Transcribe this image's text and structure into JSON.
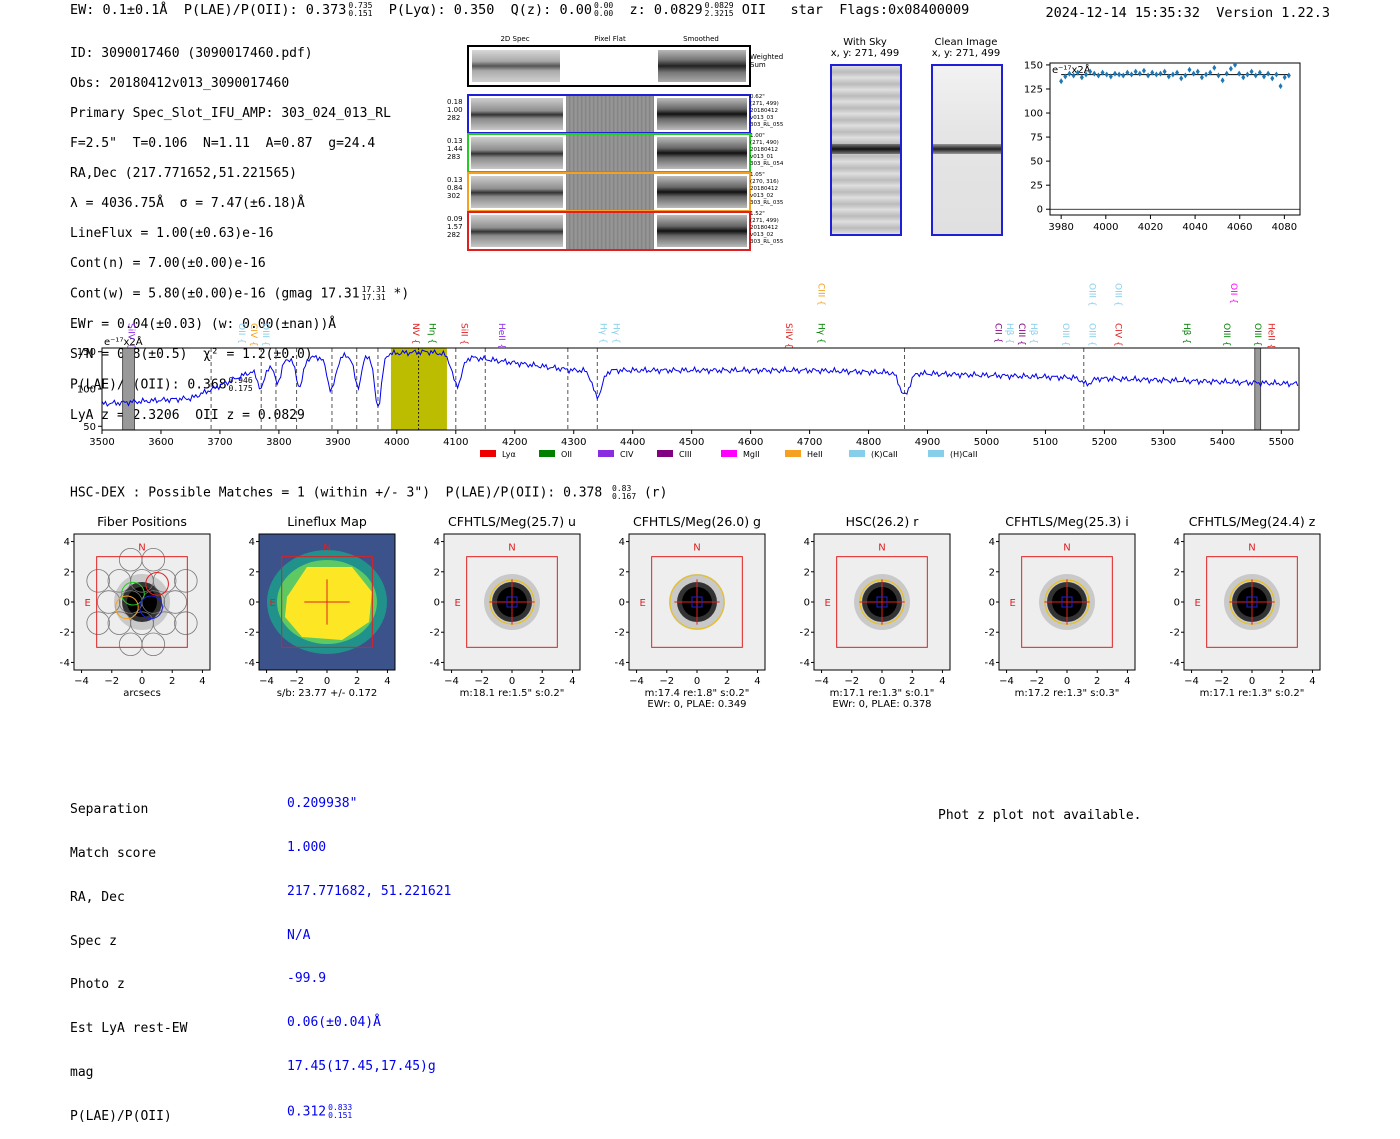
{
  "header": {
    "ew": "EW: 0.1±0.1Å",
    "plae_label": "P(LAE)/P(OII): 0.373",
    "plae_hi": "0.735",
    "plae_lo": "0.151",
    "plya": "P(Lyα): 0.350",
    "qz_label": "Q(z): 0.00",
    "qz_hi": "0.00",
    "qz_lo": "0.00",
    "z_label": "z: 0.0829",
    "z_hi": "0.0829",
    "z_lo": "2.3215",
    "z_tail": "OII   star  Flags:0x08400009",
    "timestamp": "2024-12-14 15:35:32  Version 1.22.3"
  },
  "info": {
    "id": "ID: 3090017460 (3090017460.pdf)",
    "obs": "Obs: 20180412v013_3090017460",
    "primary": "Primary Spec_Slot_IFU_AMP: 303_024_013_RL",
    "f_line": "F=2.5\"  T=0.106  N=1.11  A=0.87  g=24.4",
    "radec": "RA,Dec (217.771652,51.221565)",
    "lambda": "λ = 4036.75Å  σ = 7.47(±6.18)Å",
    "lineflux": "LineFlux = 1.00(±0.63)e-16",
    "contn": "Cont(n) = 7.00(±0.00)e-16",
    "contw": "Cont(w) = 5.80(±0.00)e-16 (gmag 17.31",
    "contw_hi": "17.31",
    "contw_lo": "17.31",
    "contw_tail": "*)",
    "ewr": "EWr = 0.04(±0.03) (w: 0.00(±nan))Å",
    "sn": "S/N = 0.8(±0.5)  χ² = 1.2(±0.0)",
    "plae": "P(LAE)/P(OII): 0.368",
    "plae_hi": "0.946",
    "plae_lo": "0.175",
    "lyaz": "LyA z = 2.3206  OII z = 0.0829"
  },
  "cutouts": {
    "col_2d": "2D Spec",
    "col_flat": "Pixel Flat",
    "col_smooth": "Smoothed",
    "weighted": "Weighted Sum",
    "rows": [
      {
        "left": [
          "0.18",
          "1.00",
          "282"
        ],
        "right": [
          "0.62\"",
          "(271, 499)",
          "20180412",
          "v013_03",
          "303_RL_055"
        ],
        "color": "#1f1fd8"
      },
      {
        "left": [
          "0.13",
          "1.44",
          "283"
        ],
        "right": [
          "1.00\"",
          "(271, 490)",
          "20180412",
          "v013_01",
          "303_RL_054"
        ],
        "color": "#22cc22"
      },
      {
        "left": [
          "0.13",
          "0.84",
          "302"
        ],
        "right": [
          "1.05\"",
          "(270, 316)",
          "20180412",
          "v013_02",
          "303_RL_035"
        ],
        "color": "#f5a020"
      },
      {
        "left": [
          "0.09",
          "1.57",
          "282"
        ],
        "right": [
          "1.52\"",
          "(271, 499)",
          "20180412",
          "v013_02",
          "303_RL_055"
        ],
        "color": "#e02020"
      }
    ]
  },
  "sky": {
    "with_title": "With Sky",
    "with_xy": "x, y: 271, 499",
    "clean_title": "Clean Image",
    "clean_xy": "x, y: 271, 499"
  },
  "zoom_plot": {
    "ylabel": "e⁻¹⁷x2Å",
    "yticks": [
      "150",
      "125",
      "100",
      "75",
      "50",
      "25",
      "0"
    ],
    "xticks": [
      "3980",
      "4000",
      "4020",
      "4040",
      "4060",
      "4080"
    ],
    "y": [
      133,
      138,
      141,
      139,
      142,
      137,
      140,
      143,
      141,
      139,
      142,
      140,
      138,
      141,
      140,
      139,
      142,
      140,
      143,
      141,
      144,
      139,
      142,
      140,
      141,
      143,
      138,
      140,
      142,
      136,
      139,
      145,
      141,
      143,
      137,
      140,
      142,
      147,
      139,
      134,
      141,
      146,
      150,
      141,
      137,
      140,
      143,
      139,
      142,
      138,
      141,
      136,
      140,
      128,
      137,
      139
    ],
    "fit_level": 140
  },
  "spectrum": {
    "ylabel": "e⁻¹⁷x2Å",
    "yticks": [
      "150",
      "100",
      "50"
    ],
    "xticks": [
      "3500",
      "3600",
      "3700",
      "3800",
      "3900",
      "4000",
      "4100",
      "4200",
      "4300",
      "4400",
      "4500",
      "4600",
      "4700",
      "4800",
      "4900",
      "5000",
      "5100",
      "5200",
      "5300",
      "5400",
      "5500"
    ],
    "line_labels": [
      {
        "name": "SiIV",
        "x": 3540,
        "color": "#8a2be2",
        "row": 1
      },
      {
        "name": "OII",
        "x": 3727,
        "color": "#87ceeb",
        "row": 1
      },
      {
        "name": "CIV",
        "x": 3748,
        "color": "#f5a020",
        "row": 1
      },
      {
        "name": "OIII",
        "x": 3768,
        "color": "#87ceeb",
        "row": 1
      },
      {
        "name": "NV",
        "x": 4022,
        "color": "#e02020",
        "row": 1
      },
      {
        "name": "Hη",
        "x": 4050,
        "color": "#008000",
        "row": 1
      },
      {
        "name": "SiII",
        "x": 4105,
        "color": "#e02020",
        "row": 1
      },
      {
        "name": "HeII",
        "x": 4168,
        "color": "#8a2be2",
        "row": 1
      },
      {
        "name": "Hγ",
        "x": 4340,
        "color": "#87ceeb",
        "row": 1
      },
      {
        "name": "Hγ",
        "x": 4362,
        "color": "#87ceeb",
        "row": 1
      },
      {
        "name": "SiIV",
        "x": 4655,
        "color": "#e02020",
        "row": 1
      },
      {
        "name": "Hγ",
        "x": 4710,
        "color": "#008000",
        "row": 1
      },
      {
        "name": "CIII",
        "x": 4710,
        "color": "#f5a020",
        "row": 0
      },
      {
        "name": "CII",
        "x": 5010,
        "color": "#800080",
        "row": 1
      },
      {
        "name": "Hβ",
        "x": 5030,
        "color": "#87ceeb",
        "row": 1
      },
      {
        "name": "CIII",
        "x": 5050,
        "color": "#800080",
        "row": 1
      },
      {
        "name": "Hβ",
        "x": 5070,
        "color": "#87ceeb",
        "row": 1
      },
      {
        "name": "OIII",
        "x": 5125,
        "color": "#87ceeb",
        "row": 1
      },
      {
        "name": "OIII",
        "x": 5170,
        "color": "#87ceeb",
        "row": 1
      },
      {
        "name": "OIII",
        "x": 5170,
        "color": "#87ceeb",
        "row": 0
      },
      {
        "name": "OIII",
        "x": 5214,
        "color": "#87ceeb",
        "row": 0
      },
      {
        "name": "CIV",
        "x": 5214,
        "color": "#e02020",
        "row": 1
      },
      {
        "name": "Hβ",
        "x": 5330,
        "color": "#008000",
        "row": 1
      },
      {
        "name": "OIII",
        "x": 5398,
        "color": "#008000",
        "row": 1
      },
      {
        "name": "OII",
        "x": 5410,
        "color": "#ff00ff",
        "row": 0
      },
      {
        "name": "OIII",
        "x": 5450,
        "color": "#008000",
        "row": 1
      },
      {
        "name": "HeII",
        "x": 5473,
        "color": "#e02020",
        "row": 1
      }
    ],
    "legend": [
      {
        "label": "Lyα",
        "color": "#ee0000"
      },
      {
        "label": "OII",
        "color": "#008000"
      },
      {
        "label": "CIV",
        "color": "#8a2be2"
      },
      {
        "label": "CIII",
        "color": "#800080"
      },
      {
        "label": "MgII",
        "color": "#ff00ff"
      },
      {
        "label": "HeII",
        "color": "#f5a020"
      },
      {
        "label": "(K)CaII",
        "color": "#87ceeb"
      },
      {
        "label": "(H)CaII",
        "color": "#87ceeb"
      }
    ],
    "dashed_lines": [
      3685,
      3770,
      3795,
      3830,
      3890,
      3932,
      3968,
      4100,
      4150,
      4290,
      4340,
      4861,
      5165
    ],
    "highlight_range": [
      3990,
      4085
    ],
    "masked_ranges": [
      [
        3535,
        3555
      ],
      [
        5455,
        5465
      ]
    ]
  },
  "hsc": {
    "title": "HSC-DEX : Possible Matches = 1 (within +/- 3\")  P(LAE)/P(OII): 0.378",
    "hi": "0.83",
    "lo": "0.167",
    "tail": "(r)"
  },
  "imaging_panels": [
    {
      "title": "Fiber Positions",
      "type": "fibers",
      "caption": [
        "arcsecs"
      ]
    },
    {
      "title": "Lineflux Map",
      "type": "lineflux",
      "caption": [
        "s/b: 23.77 +/- 0.172"
      ]
    },
    {
      "title": "CFHTLS/Meg(25.7) u",
      "type": "star",
      "caption": [
        "m:18.1  re:1.5\"  s:0.2\""
      ]
    },
    {
      "title": "CFHTLS/Meg(26.0) g",
      "type": "star",
      "caption": [
        "m:17.4  re:1.8\"  s:0.2\"",
        "EWr: 0, PLAE: 0.349"
      ]
    },
    {
      "title": "HSC(26.2) r",
      "type": "star",
      "caption": [
        "m:17.1  re:1.3\"  s:0.1\"",
        "EWr: 0, PLAE: 0.378"
      ]
    },
    {
      "title": "CFHTLS/Meg(25.3) i",
      "type": "star",
      "caption": [
        "m:17.2  re:1.3\"  s:0.3\""
      ]
    },
    {
      "title": "CFHTLS/Meg(24.4) z",
      "type": "star",
      "caption": [
        "m:17.1  re:1.3\"  s:0.2\""
      ]
    }
  ],
  "axis_ticks": {
    "y": [
      "4",
      "2",
      "0",
      "−2",
      "−4"
    ],
    "x": [
      "−4",
      "−2",
      "0",
      "2",
      "4"
    ],
    "north": "N",
    "east": "E"
  },
  "match": {
    "labels": [
      "Separation",
      "Match score",
      "RA, Dec",
      "Spec z",
      "Photo z",
      "Est LyA rest-EW",
      "mag",
      "P(LAE)/P(OII)"
    ],
    "values": [
      "0.209938\"",
      "1.000",
      "217.771682, 51.221621",
      "N/A",
      "-99.9",
      "0.06(±0.04)Å",
      "17.45(17.45,17.45)g",
      "0.312"
    ],
    "plae_hi": "0.833",
    "plae_lo": "0.151"
  },
  "photz_msg": "Phot z plot not available."
}
